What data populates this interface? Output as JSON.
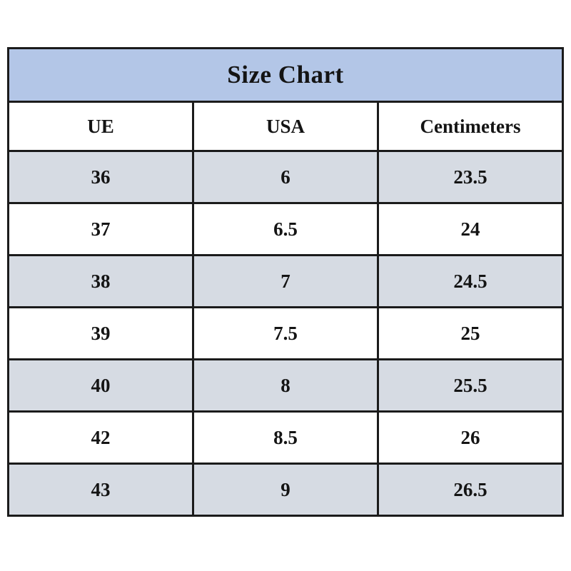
{
  "chart_data": {
    "type": "table",
    "title": "Size Chart",
    "columns": [
      "UE",
      "USA",
      "Centimeters"
    ],
    "rows": [
      [
        "36",
        "6",
        "23.5"
      ],
      [
        "37",
        "6.5",
        "24"
      ],
      [
        "38",
        "7",
        "24.5"
      ],
      [
        "39",
        "7.5",
        "25"
      ],
      [
        "40",
        "8",
        "25.5"
      ],
      [
        "42",
        "8.5",
        "26"
      ],
      [
        "43",
        "9",
        "26.5"
      ]
    ],
    "layout": {
      "shaded_row_indexes": [
        0,
        2,
        4,
        6
      ],
      "column_count": 3,
      "equal_column_widths": true
    }
  },
  "colors": {
    "title_background": "#b3c6e7",
    "shaded_row_background": "#d6dbe3",
    "plain_row_background": "#ffffff",
    "border": "#1b1b1b",
    "text": "#141414",
    "page_background": "#ffffff"
  }
}
